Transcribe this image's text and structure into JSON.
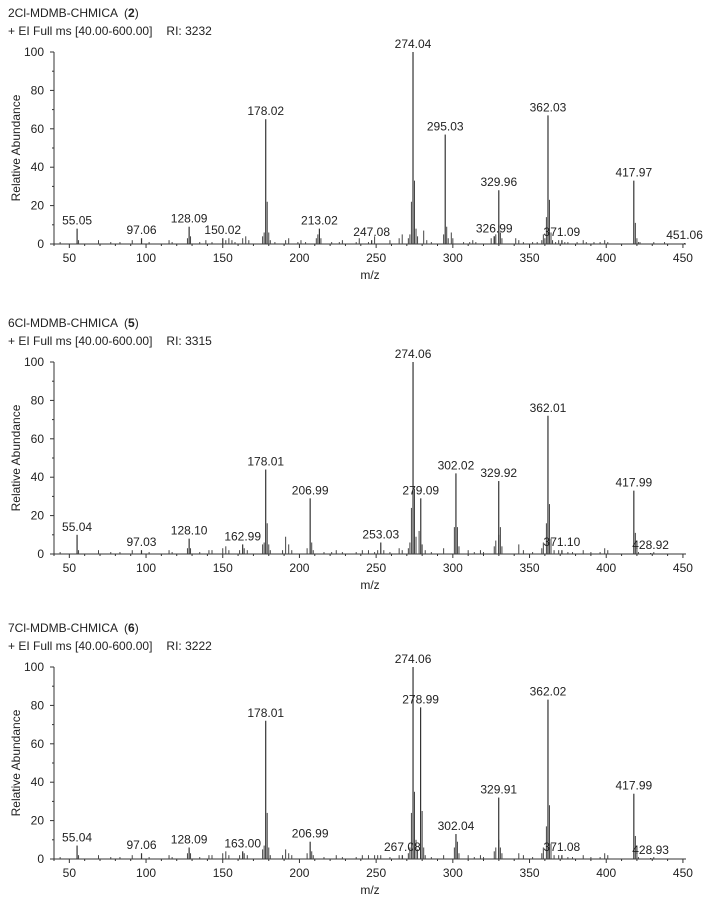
{
  "chart_data": [
    {
      "type": "bar",
      "compound": "2Cl-MDMB-CHMICA",
      "compound_number": "2",
      "scan": "+ EI Full ms [40.00-600.00]",
      "ri_label": "RI:",
      "ri_value": "3232",
      "xlabel": "m/z",
      "ylabel": "Relative Abundance",
      "xlim": [
        40,
        452
      ],
      "ylim": [
        0,
        100
      ],
      "xticks": [
        50,
        100,
        150,
        200,
        250,
        300,
        350,
        400,
        450
      ],
      "yticks": [
        0,
        20,
        40,
        60,
        80,
        100
      ],
      "labeled_peaks": [
        {
          "label": "55.05",
          "mz": 55.05,
          "value": 8
        },
        {
          "label": "97.06",
          "mz": 97.06,
          "value": 3
        },
        {
          "label": "128.09",
          "mz": 128.09,
          "value": 9
        },
        {
          "label": "150.02",
          "mz": 150.02,
          "value": 3
        },
        {
          "label": "178.02",
          "mz": 178.02,
          "value": 65
        },
        {
          "label": "213.02",
          "mz": 213.02,
          "value": 8
        },
        {
          "label": "247.08",
          "mz": 247.08,
          "value": 2
        },
        {
          "label": "274.04",
          "mz": 274.04,
          "value": 100
        },
        {
          "label": "295.03",
          "mz": 295.03,
          "value": 57
        },
        {
          "label": "326.99",
          "mz": 326.99,
          "value": 4
        },
        {
          "label": "329.96",
          "mz": 329.96,
          "value": 28
        },
        {
          "label": "362.03",
          "mz": 362.03,
          "value": 67
        },
        {
          "label": "371.09",
          "mz": 371.09,
          "value": 2
        },
        {
          "label": "417.97",
          "mz": 417.97,
          "value": 33
        },
        {
          "label": "451.06",
          "mz": 451.06,
          "value": 0.5
        }
      ],
      "minor_peaks": [
        [
          44,
          1
        ],
        [
          56,
          2
        ],
        [
          69,
          2
        ],
        [
          77,
          1
        ],
        [
          83,
          1
        ],
        [
          91,
          2
        ],
        [
          102,
          1
        ],
        [
          115,
          2
        ],
        [
          117,
          1
        ],
        [
          127,
          3
        ],
        [
          129,
          4
        ],
        [
          135,
          1
        ],
        [
          139,
          2
        ],
        [
          143,
          1
        ],
        [
          152,
          2
        ],
        [
          154,
          3
        ],
        [
          156,
          2
        ],
        [
          158,
          1
        ],
        [
          163,
          3
        ],
        [
          165,
          4
        ],
        [
          167,
          2
        ],
        [
          176,
          4
        ],
        [
          177,
          6
        ],
        [
          179,
          22
        ],
        [
          180,
          6
        ],
        [
          181,
          2
        ],
        [
          184,
          1
        ],
        [
          191,
          2
        ],
        [
          193,
          3
        ],
        [
          199,
          1
        ],
        [
          201,
          2
        ],
        [
          204,
          1
        ],
        [
          211,
          3
        ],
        [
          212,
          5
        ],
        [
          214,
          3
        ],
        [
          221,
          1
        ],
        [
          226,
          1
        ],
        [
          228,
          2
        ],
        [
          237,
          1
        ],
        [
          239,
          3
        ],
        [
          245,
          1
        ],
        [
          249,
          4
        ],
        [
          259,
          2
        ],
        [
          265,
          3
        ],
        [
          267,
          5
        ],
        [
          271,
          3
        ],
        [
          272,
          5
        ],
        [
          273,
          22
        ],
        [
          275,
          33
        ],
        [
          276,
          8
        ],
        [
          277,
          4
        ],
        [
          281,
          7
        ],
        [
          283,
          2
        ],
        [
          286,
          1
        ],
        [
          294,
          5
        ],
        [
          296,
          9
        ],
        [
          297,
          3
        ],
        [
          299,
          6
        ],
        [
          300,
          3
        ],
        [
          307,
          1
        ],
        [
          311,
          1
        ],
        [
          313,
          2
        ],
        [
          315,
          1
        ],
        [
          325,
          3
        ],
        [
          327,
          4
        ],
        [
          328,
          5
        ],
        [
          330,
          10
        ],
        [
          331,
          6
        ],
        [
          332,
          3
        ],
        [
          341,
          3
        ],
        [
          343,
          2
        ],
        [
          346,
          1
        ],
        [
          352,
          1
        ],
        [
          355,
          1
        ],
        [
          358,
          2
        ],
        [
          359,
          5
        ],
        [
          360,
          3
        ],
        [
          361,
          14
        ],
        [
          363,
          23
        ],
        [
          364,
          6
        ],
        [
          365,
          2
        ],
        [
          367,
          1
        ],
        [
          369,
          2
        ],
        [
          373,
          1
        ],
        [
          375,
          1
        ],
        [
          381,
          1
        ],
        [
          385,
          2
        ],
        [
          387,
          1
        ],
        [
          392,
          1
        ],
        [
          396,
          1
        ],
        [
          399,
          2
        ],
        [
          401,
          1
        ],
        [
          419,
          11
        ],
        [
          420,
          3
        ],
        [
          421,
          1
        ],
        [
          422,
          1
        ],
        [
          431,
          1
        ],
        [
          438,
          1
        ]
      ]
    },
    {
      "type": "bar",
      "compound": "6Cl-MDMB-CHMICA",
      "compound_number": "5",
      "scan": "+ EI Full ms [40.00-600.00]",
      "ri_label": "RI:",
      "ri_value": "3315",
      "xlabel": "m/z",
      "ylabel": "Relative Abundance",
      "xlim": [
        40,
        452
      ],
      "ylim": [
        0,
        100
      ],
      "xticks": [
        50,
        100,
        150,
        200,
        250,
        300,
        350,
        400,
        450
      ],
      "yticks": [
        0,
        20,
        40,
        60,
        80,
        100
      ],
      "labeled_peaks": [
        {
          "label": "55.04",
          "mz": 55.04,
          "value": 10
        },
        {
          "label": "97.03",
          "mz": 97.03,
          "value": 2
        },
        {
          "label": "128.10",
          "mz": 128.1,
          "value": 8
        },
        {
          "label": "162.99",
          "mz": 162.99,
          "value": 5
        },
        {
          "label": "178.01",
          "mz": 178.01,
          "value": 44
        },
        {
          "label": "206.99",
          "mz": 206.99,
          "value": 29
        },
        {
          "label": "253.03",
          "mz": 253.03,
          "value": 6
        },
        {
          "label": "274.06",
          "mz": 274.06,
          "value": 100
        },
        {
          "label": "279.09",
          "mz": 279.09,
          "value": 29
        },
        {
          "label": "302.02",
          "mz": 302.02,
          "value": 42
        },
        {
          "label": "329.92",
          "mz": 329.92,
          "value": 38
        },
        {
          "label": "362.01",
          "mz": 362.01,
          "value": 72
        },
        {
          "label": "371.10",
          "mz": 371.1,
          "value": 2
        },
        {
          "label": "417.99",
          "mz": 417.99,
          "value": 33
        },
        {
          "label": "428.92",
          "mz": 428.92,
          "value": 0.5
        }
      ],
      "minor_peaks": [
        [
          44,
          1
        ],
        [
          56,
          2
        ],
        [
          69,
          2
        ],
        [
          77,
          1
        ],
        [
          83,
          1
        ],
        [
          91,
          2
        ],
        [
          102,
          1
        ],
        [
          115,
          2
        ],
        [
          117,
          1
        ],
        [
          127,
          3
        ],
        [
          129,
          3
        ],
        [
          135,
          1
        ],
        [
          141,
          2
        ],
        [
          143,
          2
        ],
        [
          150,
          3
        ],
        [
          152,
          4
        ],
        [
          154,
          2
        ],
        [
          161,
          2
        ],
        [
          164,
          3
        ],
        [
          166,
          2
        ],
        [
          176,
          5
        ],
        [
          177,
          6
        ],
        [
          179,
          16
        ],
        [
          180,
          5
        ],
        [
          181,
          2
        ],
        [
          189,
          2
        ],
        [
          191,
          9
        ],
        [
          193,
          5
        ],
        [
          195,
          2
        ],
        [
          205,
          3
        ],
        [
          208,
          6
        ],
        [
          209,
          2
        ],
        [
          216,
          1
        ],
        [
          221,
          1
        ],
        [
          224,
          2
        ],
        [
          228,
          1
        ],
        [
          237,
          1
        ],
        [
          241,
          2
        ],
        [
          245,
          2
        ],
        [
          249,
          1
        ],
        [
          251,
          2
        ],
        [
          255,
          2
        ],
        [
          259,
          1
        ],
        [
          265,
          3
        ],
        [
          267,
          2
        ],
        [
          271,
          3
        ],
        [
          272,
          6
        ],
        [
          273,
          24
        ],
        [
          275,
          34
        ],
        [
          276,
          9
        ],
        [
          278,
          12
        ],
        [
          280,
          5
        ],
        [
          282,
          2
        ],
        [
          286,
          1
        ],
        [
          294,
          3
        ],
        [
          301,
          14
        ],
        [
          303,
          14
        ],
        [
          304,
          4
        ],
        [
          310,
          2
        ],
        [
          314,
          1
        ],
        [
          318,
          2
        ],
        [
          320,
          1
        ],
        [
          327,
          4
        ],
        [
          328,
          7
        ],
        [
          330,
          10
        ],
        [
          331,
          14
        ],
        [
          332,
          4
        ],
        [
          343,
          5
        ],
        [
          346,
          2
        ],
        [
          352,
          1
        ],
        [
          358,
          3
        ],
        [
          359,
          6
        ],
        [
          361,
          16
        ],
        [
          363,
          26
        ],
        [
          364,
          8
        ],
        [
          366,
          2
        ],
        [
          369,
          2
        ],
        [
          375,
          1
        ],
        [
          378,
          1
        ],
        [
          385,
          2
        ],
        [
          390,
          1
        ],
        [
          396,
          1
        ],
        [
          399,
          3
        ],
        [
          401,
          2
        ],
        [
          419,
          11
        ],
        [
          420,
          3
        ],
        [
          421,
          1
        ],
        [
          431,
          1
        ]
      ]
    },
    {
      "type": "bar",
      "compound": "7Cl-MDMB-CHMICA",
      "compound_number": "6",
      "scan": "+ EI Full ms [40.00-600.00]",
      "ri_label": "RI:",
      "ri_value": "3222",
      "xlabel": "m/z",
      "ylabel": "Relative Abundance",
      "xlim": [
        40,
        452
      ],
      "ylim": [
        0,
        100
      ],
      "xticks": [
        50,
        100,
        150,
        200,
        250,
        300,
        350,
        400,
        450
      ],
      "yticks": [
        0,
        20,
        40,
        60,
        80,
        100
      ],
      "labeled_peaks": [
        {
          "label": "55.04",
          "mz": 55.04,
          "value": 7
        },
        {
          "label": "97.06",
          "mz": 97.06,
          "value": 3
        },
        {
          "label": "128.09",
          "mz": 128.09,
          "value": 6
        },
        {
          "label": "163.00",
          "mz": 163.0,
          "value": 4
        },
        {
          "label": "178.01",
          "mz": 178.01,
          "value": 72
        },
        {
          "label": "206.99",
          "mz": 206.99,
          "value": 9
        },
        {
          "label": "267.08",
          "mz": 267.08,
          "value": 2
        },
        {
          "label": "274.06",
          "mz": 274.06,
          "value": 100
        },
        {
          "label": "278.99",
          "mz": 278.99,
          "value": 79
        },
        {
          "label": "302.04",
          "mz": 302.04,
          "value": 13
        },
        {
          "label": "329.91",
          "mz": 329.91,
          "value": 32
        },
        {
          "label": "362.02",
          "mz": 362.02,
          "value": 83
        },
        {
          "label": "371.08",
          "mz": 371.08,
          "value": 2
        },
        {
          "label": "417.99",
          "mz": 417.99,
          "value": 34
        },
        {
          "label": "428.93",
          "mz": 428.93,
          "value": 0.5
        }
      ],
      "minor_peaks": [
        [
          44,
          1
        ],
        [
          56,
          2
        ],
        [
          69,
          2
        ],
        [
          77,
          1
        ],
        [
          83,
          1
        ],
        [
          91,
          2
        ],
        [
          102,
          1
        ],
        [
          115,
          2
        ],
        [
          117,
          1
        ],
        [
          127,
          3
        ],
        [
          129,
          3
        ],
        [
          135,
          1
        ],
        [
          141,
          2
        ],
        [
          143,
          2
        ],
        [
          150,
          3
        ],
        [
          152,
          4
        ],
        [
          154,
          2
        ],
        [
          161,
          2
        ],
        [
          164,
          3
        ],
        [
          166,
          2
        ],
        [
          176,
          5
        ],
        [
          177,
          7
        ],
        [
          179,
          24
        ],
        [
          180,
          6
        ],
        [
          181,
          2
        ],
        [
          189,
          2
        ],
        [
          191,
          5
        ],
        [
          193,
          3
        ],
        [
          195,
          2
        ],
        [
          205,
          3
        ],
        [
          208,
          4
        ],
        [
          209,
          2
        ],
        [
          216,
          1
        ],
        [
          224,
          2
        ],
        [
          228,
          1
        ],
        [
          237,
          1
        ],
        [
          241,
          2
        ],
        [
          245,
          2
        ],
        [
          249,
          2
        ],
        [
          251,
          2
        ],
        [
          253,
          2
        ],
        [
          259,
          1
        ],
        [
          265,
          2
        ],
        [
          271,
          3
        ],
        [
          272,
          6
        ],
        [
          273,
          24
        ],
        [
          275,
          35
        ],
        [
          276,
          10
        ],
        [
          277,
          5
        ],
        [
          280,
          25
        ],
        [
          281,
          6
        ],
        [
          282,
          2
        ],
        [
          286,
          1
        ],
        [
          294,
          2
        ],
        [
          301,
          6
        ],
        [
          303,
          9
        ],
        [
          304,
          3
        ],
        [
          310,
          2
        ],
        [
          314,
          1
        ],
        [
          318,
          2
        ],
        [
          320,
          1
        ],
        [
          327,
          4
        ],
        [
          328,
          6
        ],
        [
          330,
          10
        ],
        [
          331,
          6
        ],
        [
          332,
          3
        ],
        [
          343,
          3
        ],
        [
          346,
          2
        ],
        [
          352,
          1
        ],
        [
          358,
          3
        ],
        [
          359,
          6
        ],
        [
          361,
          17
        ],
        [
          363,
          28
        ],
        [
          364,
          8
        ],
        [
          366,
          2
        ],
        [
          369,
          2
        ],
        [
          375,
          1
        ],
        [
          378,
          1
        ],
        [
          385,
          2
        ],
        [
          390,
          1
        ],
        [
          396,
          1
        ],
        [
          399,
          3
        ],
        [
          401,
          2
        ],
        [
          419,
          12
        ],
        [
          420,
          3
        ],
        [
          421,
          1
        ],
        [
          431,
          1
        ]
      ]
    }
  ]
}
